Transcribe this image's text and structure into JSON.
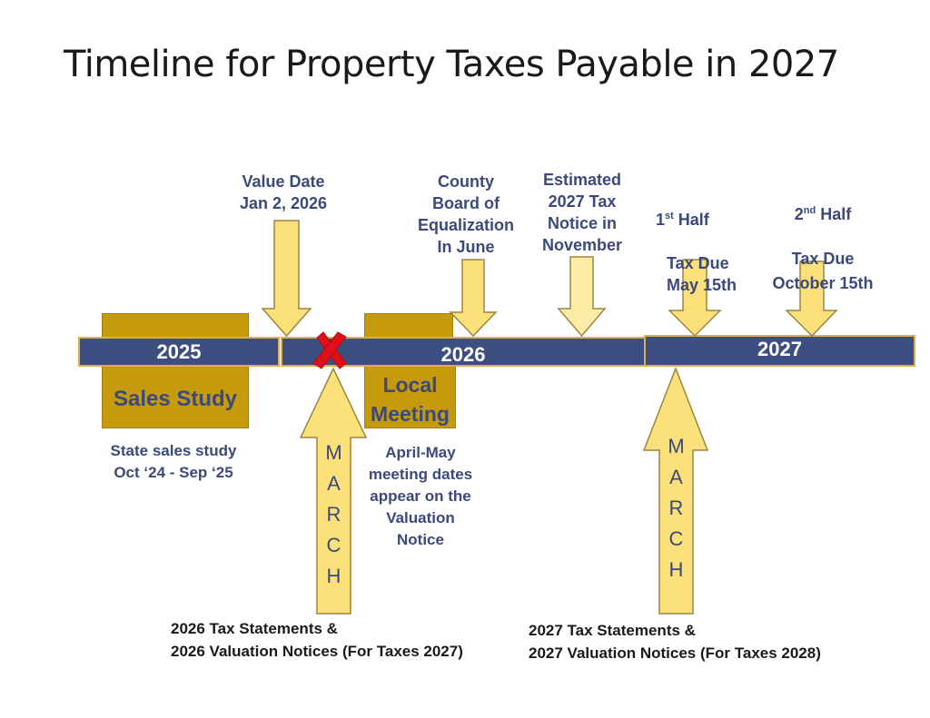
{
  "title": "Timeline for Property Taxes Payable in 2027",
  "colors": {
    "bar": "#3d4f80",
    "bar_border": "#d9b24a",
    "arrow_fill": "#fce17a",
    "arrow_fill_light": "#fdeca6",
    "arrow_stroke": "#9b8640",
    "box": "#c59a0d",
    "text_blue": "#3b4a7a",
    "x_mark": "#e0101a"
  },
  "timeline": {
    "year_2025": "2025",
    "year_2026": "2026",
    "year_2027": "2027"
  },
  "events": {
    "value_date": "Value Date\nJan 2, 2026",
    "county_board": "County\nBoard of\nEqualization\nIn June",
    "estimated_notice": "Estimated\n2027 Tax\nNotice in\nNovember",
    "first_half_sup": "st",
    "first_half_pre": "1",
    "first_half_rest": " Half",
    "first_half_due": "Tax Due\nMay 15th",
    "second_half_pre": "2",
    "second_half_sup": "nd",
    "second_half_rest": " Half",
    "second_half_due": "Tax Due\nOctober 15th"
  },
  "boxes": {
    "sales_study": "Sales Study",
    "local_meeting": "Local\nMeeting"
  },
  "notes": {
    "sales_study_desc": "State sales study\nOct ‘24 - Sep ‘25",
    "local_meeting_desc": "April-May\nmeeting dates\nappear on the\nValuation\nNotice",
    "march_2026_statements": "2026 Tax Statements &\n2026 Valuation Notices (For Taxes 2027)",
    "march_2027_statements": "2027 Tax Statements &\n2027 Valuation Notices (For Taxes 2028)"
  },
  "march_letters": [
    "M",
    "A",
    "R",
    "C",
    "H"
  ]
}
